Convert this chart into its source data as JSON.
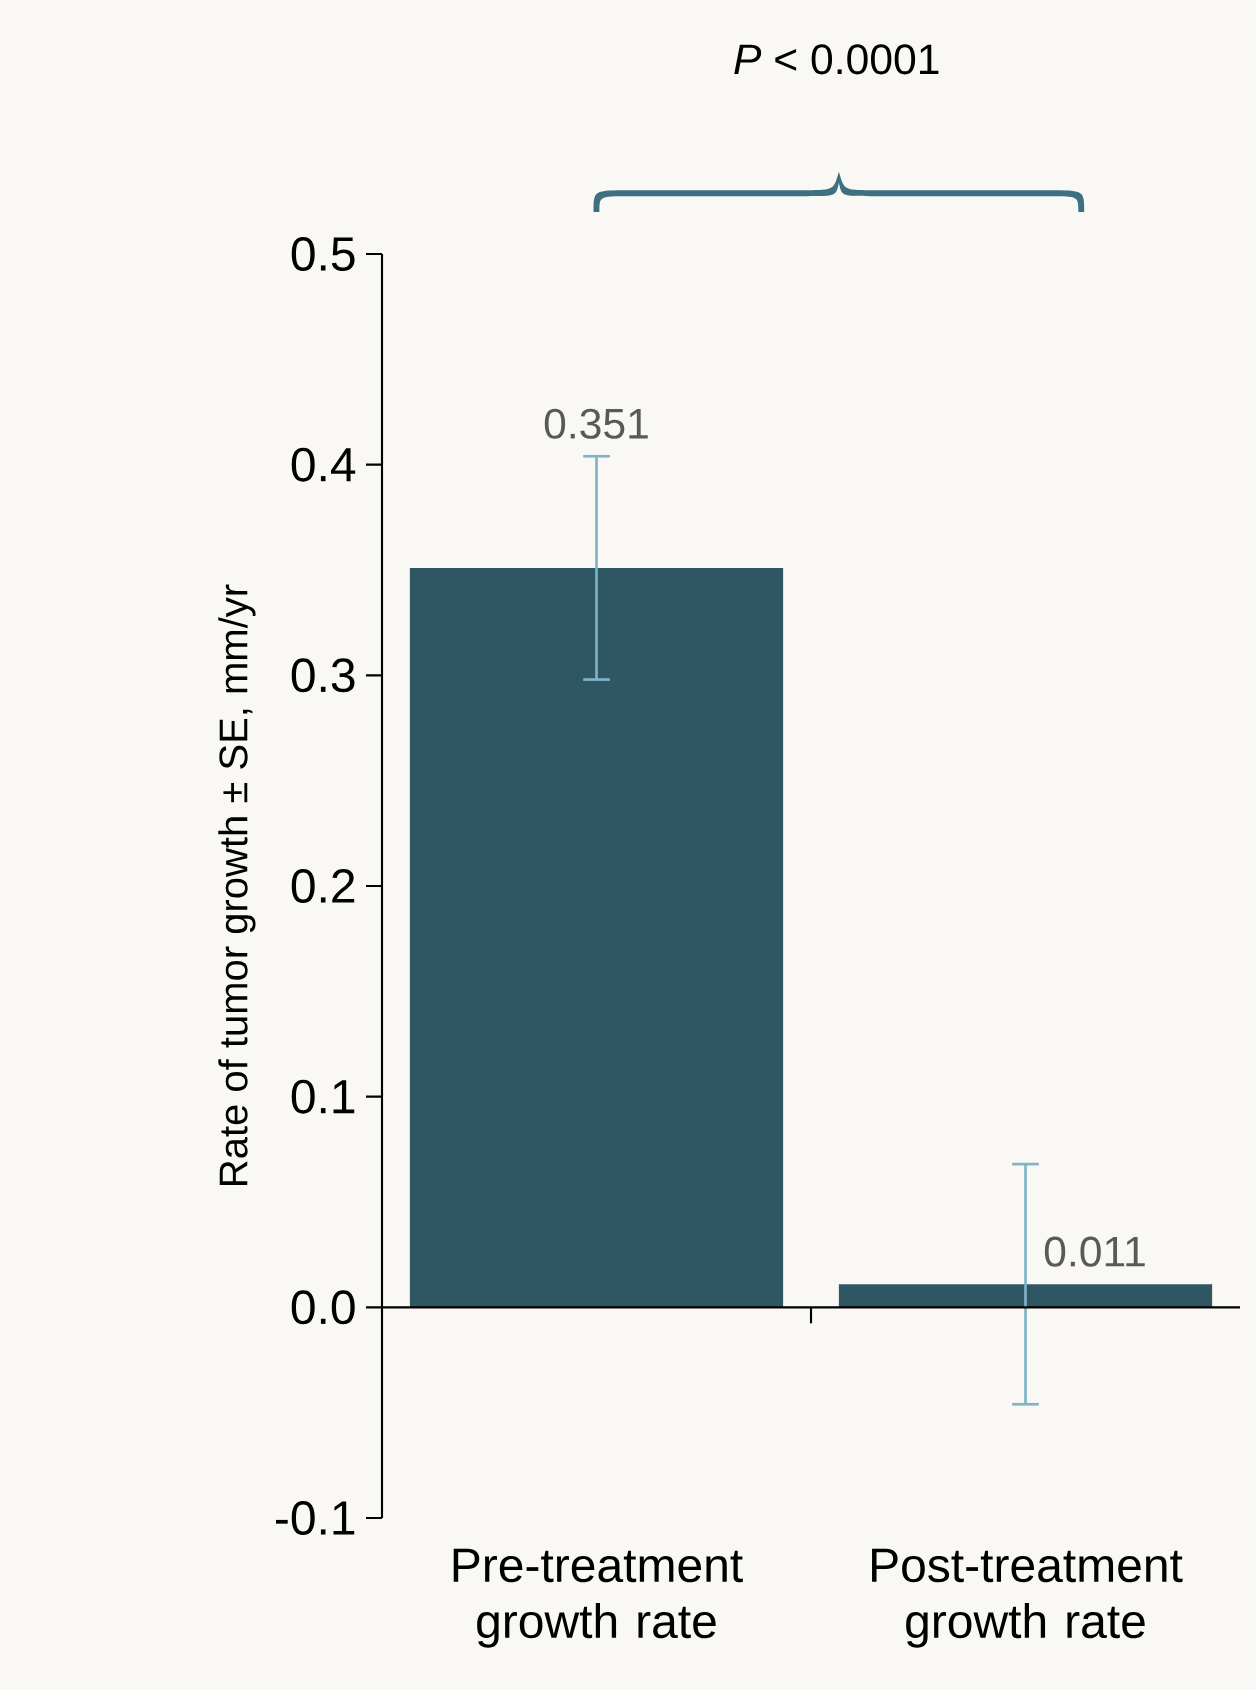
{
  "chart_data": {
    "type": "bar",
    "categories": [
      "Pre-treatment growth rate",
      "Post-treatment growth rate"
    ],
    "values": [
      0.351,
      0.011
    ],
    "errors": [
      0.053,
      0.057
    ],
    "color": "#2f5663",
    "ylabel": "Rate of tumor growth ± SE, mm/yr",
    "ylim": [
      -0.1,
      0.5
    ],
    "yticks": [
      -0.1,
      {
        "value": 0,
        "label": "0.0"
      },
      0.1,
      0.2,
      0.3,
      0.4,
      0.5
    ],
    "data_labels": true,
    "annotations": [
      "*P* < 0.0001"
    ]
  }
}
